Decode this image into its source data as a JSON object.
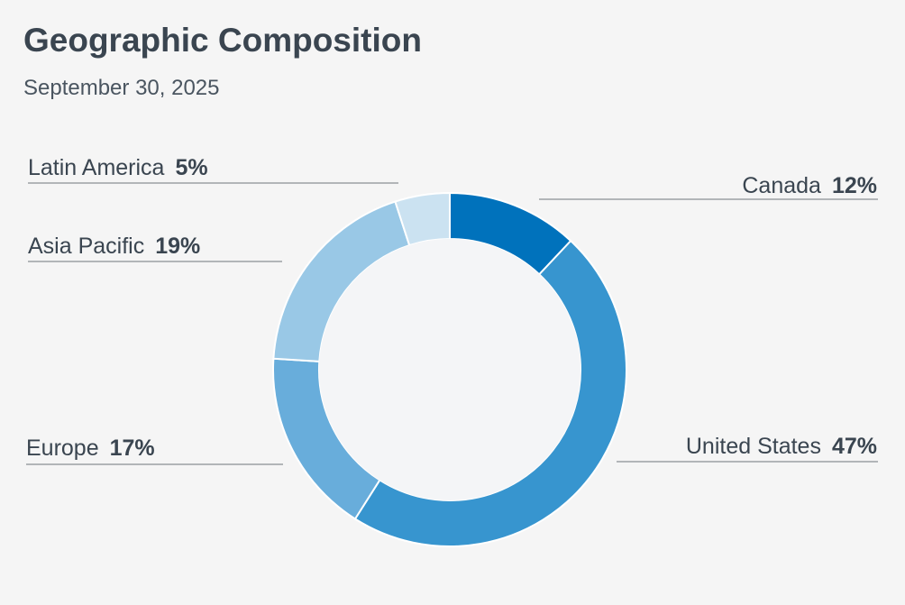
{
  "header": {
    "title": "Geographic Composition",
    "subtitle": "September 30, 2025"
  },
  "chart_data": {
    "type": "pie",
    "variant": "donut",
    "legend": "none",
    "slices": [
      {
        "label": "Canada",
        "value": 12,
        "display": "12%",
        "color": "#0072bc"
      },
      {
        "label": "United States",
        "value": 47,
        "display": "47%",
        "color": "#3795cf"
      },
      {
        "label": "Europe",
        "value": 17,
        "display": "17%",
        "color": "#68addb"
      },
      {
        "label": "Asia Pacific",
        "value": 19,
        "display": "19%",
        "color": "#99c8e6"
      },
      {
        "label": "Latin America",
        "value": 5,
        "display": "5%",
        "color": "#cbe2f1"
      }
    ]
  }
}
